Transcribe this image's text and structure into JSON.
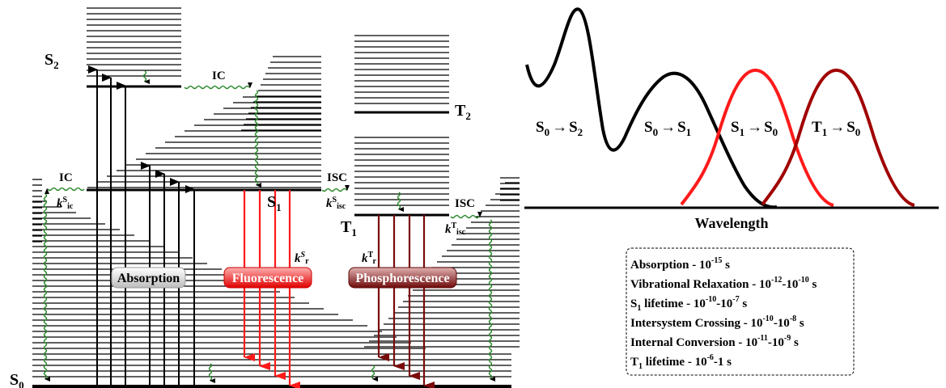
{
  "diagram": {
    "states": {
      "s0": {
        "base": "S",
        "sub": "0"
      },
      "s1": {
        "base": "S",
        "sub": "1"
      },
      "s2": {
        "base": "S",
        "sub": "2"
      },
      "t1": {
        "base": "T",
        "sub": "1"
      },
      "t2": {
        "base": "T",
        "sub": "2"
      }
    },
    "processes": {
      "ic_upper": "IC",
      "ic_left": "IC",
      "isc_s1": "ISC",
      "isc_t1": "ISC",
      "absorption": "Absorption",
      "fluorescence": "Fluorescence",
      "phosphorescence": "Phosphorescence"
    },
    "rate_constants": {
      "k_ic_s": {
        "k": "k",
        "sup": "S",
        "sub": "ic"
      },
      "k_isc_s": {
        "k": "k",
        "sup": "S",
        "sub": "isc"
      },
      "k_isc_t": {
        "k": "k",
        "sup": "T",
        "sub": "isc"
      },
      "k_r_s": {
        "k": "k",
        "sup": "S",
        "sub": "r"
      },
      "k_r_t": {
        "k": "k",
        "sup": "T",
        "sub": "r"
      }
    },
    "colors": {
      "line": "#000000",
      "wavy": "#2e8b2e",
      "fluorescence": "#ff1a1a",
      "phosphorescence": "#7a0a0a",
      "absorption_box": "#d8d8d8"
    }
  },
  "spectrum": {
    "xlabel": "Wavelength",
    "transitions": [
      {
        "a": {
          "base": "S",
          "sub": "0"
        },
        "b": {
          "base": "S",
          "sub": "2"
        }
      },
      {
        "a": {
          "base": "S",
          "sub": "0"
        },
        "b": {
          "base": "S",
          "sub": "1"
        }
      },
      {
        "a": {
          "base": "S",
          "sub": "1"
        },
        "b": {
          "base": "S",
          "sub": "0"
        }
      },
      {
        "a": {
          "base": "T",
          "sub": "1"
        },
        "b": {
          "base": "S",
          "sub": "0"
        }
      }
    ],
    "colors": {
      "absorption": "#000000",
      "fluorescence": "#ff1a1a",
      "phosphorescence": "#a00000"
    }
  },
  "timescales": [
    {
      "label": "Absorption - 10",
      "sup": "-15",
      "tail": " s"
    },
    {
      "label": "Vibrational Relaxation - 10",
      "sup": "-12",
      "mid": "-10",
      "sup2": "-10",
      "tail": " s"
    },
    {
      "label": "S",
      "sub": "1",
      "after": " lifetime - 10",
      "sup": "-10",
      "mid": "-10",
      "sup2": "-7",
      "tail": " s"
    },
    {
      "label": "Intersystem Crossing - 10",
      "sup": "-10",
      "mid": "-10",
      "sup2": "-8",
      "tail": " s"
    },
    {
      "label": "Internal Conversion - 10",
      "sup": "-11",
      "mid": "-10",
      "sup2": "-9",
      "tail": " s"
    },
    {
      "label": "T",
      "sub": "1",
      "after": " lifetime - 10",
      "sup": "-6",
      "mid": "-1",
      "tail": " s"
    }
  ]
}
